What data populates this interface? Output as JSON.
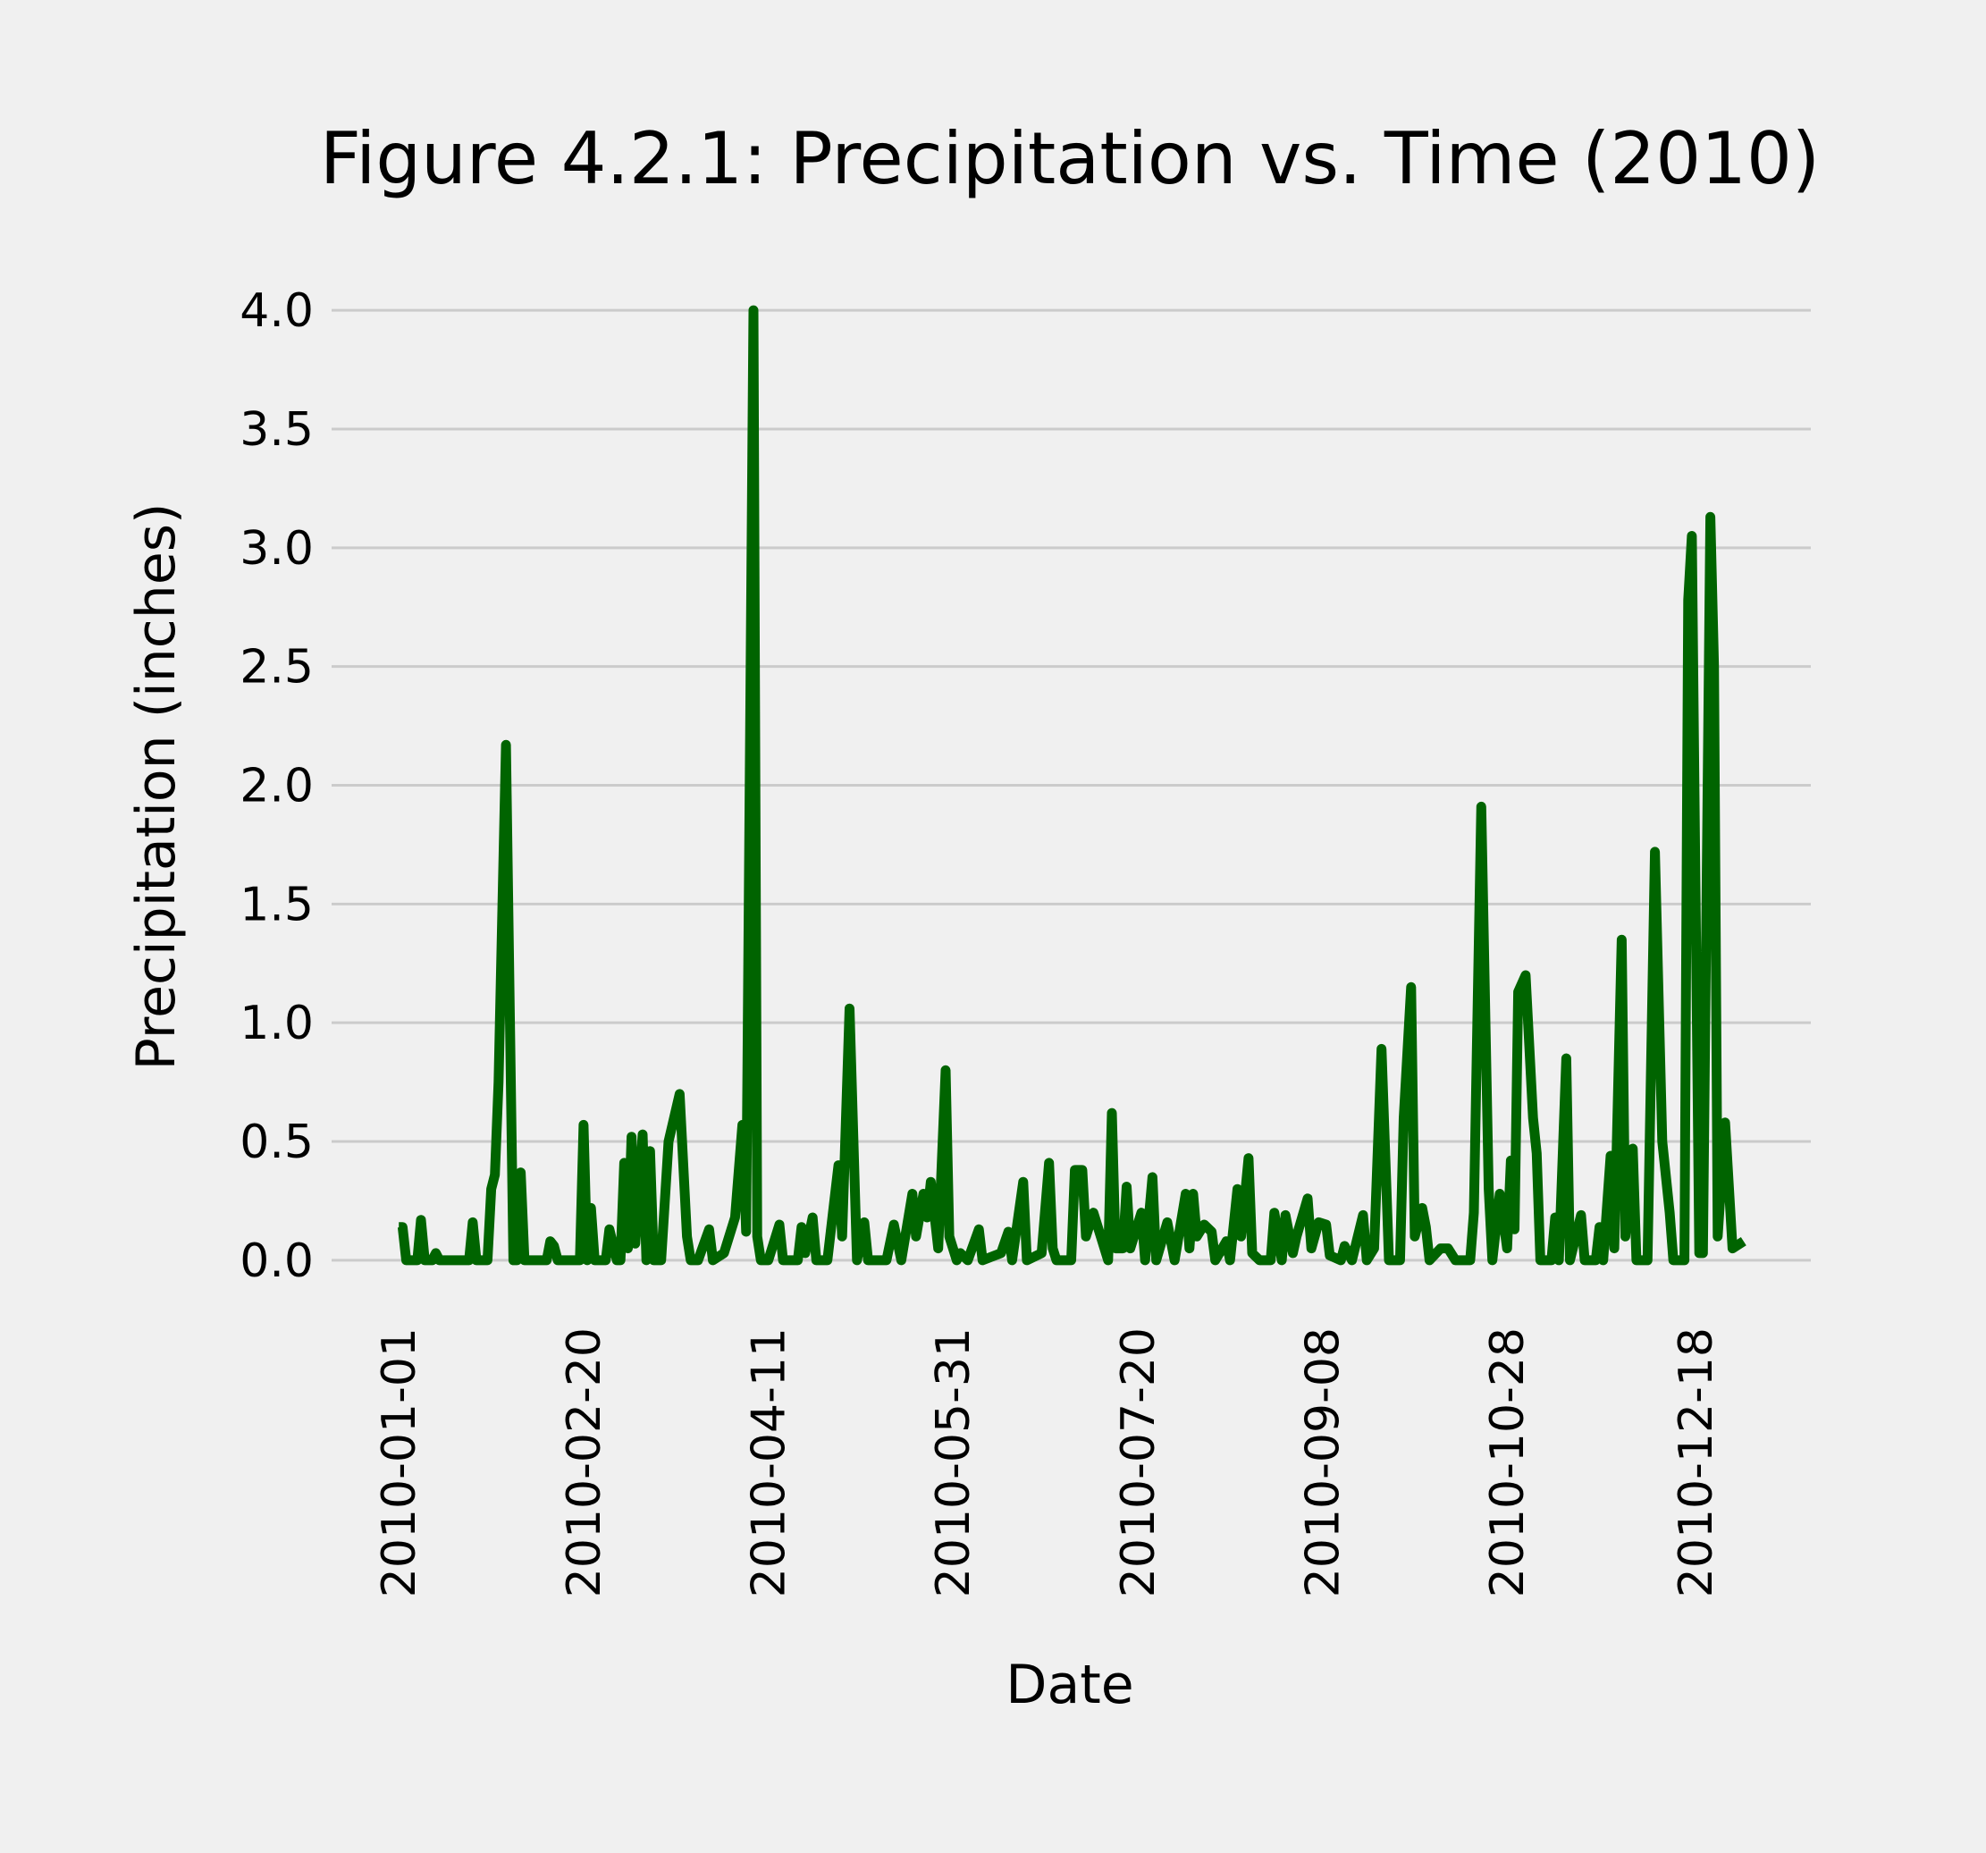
{
  "chart_data": {
    "type": "line",
    "title": "Figure 4.2.1: Precipitation vs. Time (2010)",
    "x_label": "Date",
    "y_label": "Precipitation (inches)",
    "color": "#006400",
    "grid": true,
    "x": [
      "2010-01-01",
      "2010-01-02",
      "2010-01-03",
      "2010-01-06",
      "2010-01-07",
      "2010-01-08",
      "2010-01-10",
      "2010-01-11",
      "2010-01-12",
      "2010-01-20",
      "2010-01-21",
      "2010-01-22",
      "2010-01-25",
      "2010-01-26",
      "2010-01-27",
      "2010-01-28",
      "2010-01-30",
      "2010-02-01",
      "2010-02-02",
      "2010-02-03",
      "2010-02-04",
      "2010-02-10",
      "2010-02-11",
      "2010-02-12",
      "2010-02-13",
      "2010-02-19",
      "2010-02-20",
      "2010-02-21",
      "2010-02-22",
      "2010-02-23",
      "2010-02-26",
      "2010-02-27",
      "2010-03-01",
      "2010-03-02",
      "2010-03-03",
      "2010-03-04",
      "2010-03-05",
      "2010-03-06",
      "2010-03-08",
      "2010-03-09",
      "2010-03-10",
      "2010-03-11",
      "2010-03-13",
      "2010-03-15",
      "2010-03-18",
      "2010-03-20",
      "2010-03-21",
      "2010-03-23",
      "2010-03-26",
      "2010-03-27",
      "2010-03-30",
      "2010-04-02",
      "2010-04-04",
      "2010-04-05",
      "2010-04-07",
      "2010-04-08",
      "2010-04-09",
      "2010-04-11",
      "2010-04-14",
      "2010-04-15",
      "2010-04-19",
      "2010-04-20",
      "2010-04-21",
      "2010-04-23",
      "2010-04-24",
      "2010-04-27",
      "2010-04-30",
      "2010-05-01",
      "2010-05-03",
      "2010-05-05",
      "2010-05-07",
      "2010-05-08",
      "2010-05-13",
      "2010-05-15",
      "2010-05-17",
      "2010-05-20",
      "2010-05-21",
      "2010-05-23",
      "2010-05-24",
      "2010-05-25",
      "2010-05-27",
      "2010-05-29",
      "2010-05-30",
      "2010-06-01",
      "2010-06-02",
      "2010-06-04",
      "2010-06-07",
      "2010-06-08",
      "2010-06-13",
      "2010-06-15",
      "2010-06-16",
      "2010-06-19",
      "2010-06-20",
      "2010-06-24",
      "2010-06-26",
      "2010-06-27",
      "2010-06-28",
      "2010-07-02",
      "2010-07-03",
      "2010-07-05",
      "2010-07-06",
      "2010-07-08",
      "2010-07-10",
      "2010-07-12",
      "2010-07-13",
      "2010-07-14",
      "2010-07-16",
      "2010-07-17",
      "2010-07-18",
      "2010-07-21",
      "2010-07-22",
      "2010-07-24",
      "2010-07-25",
      "2010-07-28",
      "2010-07-30",
      "2010-08-02",
      "2010-08-03",
      "2010-08-04",
      "2010-08-05",
      "2010-08-07",
      "2010-08-09",
      "2010-08-10",
      "2010-08-13",
      "2010-08-14",
      "2010-08-16",
      "2010-08-17",
      "2010-08-19",
      "2010-08-20",
      "2010-08-22",
      "2010-08-25",
      "2010-08-26",
      "2010-08-28",
      "2010-08-29",
      "2010-08-31",
      "2010-09-01",
      "2010-09-04",
      "2010-09-05",
      "2010-09-07",
      "2010-09-09",
      "2010-09-10",
      "2010-09-13",
      "2010-09-14",
      "2010-09-16",
      "2010-09-19",
      "2010-09-20",
      "2010-09-22",
      "2010-09-24",
      "2010-09-26",
      "2010-09-29",
      "2010-09-30",
      "2010-10-02",
      "2010-10-03",
      "2010-10-05",
      "2010-10-06",
      "2010-10-07",
      "2010-10-10",
      "2010-10-12",
      "2010-10-14",
      "2010-10-18",
      "2010-10-19",
      "2010-10-21",
      "2010-10-23",
      "2010-10-24",
      "2010-10-26",
      "2010-10-28",
      "2010-10-29",
      "2010-10-30",
      "2010-10-31",
      "2010-11-02",
      "2010-11-04",
      "2010-11-05",
      "2010-11-06",
      "2010-11-09",
      "2010-11-10",
      "2010-11-11",
      "2010-11-13",
      "2010-11-14",
      "2010-11-17",
      "2010-11-18",
      "2010-11-21",
      "2010-11-22",
      "2010-11-23",
      "2010-11-25",
      "2010-11-26",
      "2010-11-28",
      "2010-11-29",
      "2010-12-01",
      "2010-12-02",
      "2010-12-05",
      "2010-12-07",
      "2010-12-09",
      "2010-12-11",
      "2010-12-12",
      "2010-12-15",
      "2010-12-16",
      "2010-12-17",
      "2010-12-19",
      "2010-12-20",
      "2010-12-22",
      "2010-12-23",
      "2010-12-24",
      "2010-12-26",
      "2010-12-28",
      "2010-12-31"
    ],
    "values": [
      0.14,
      0.14,
      0,
      0,
      0.17,
      0,
      0,
      0.03,
      0,
      0,
      0.16,
      0,
      0,
      0.3,
      0.36,
      0.75,
      2.17,
      0,
      0,
      0.37,
      0,
      0,
      0.08,
      0.06,
      0,
      0,
      0.57,
      0,
      0.22,
      0,
      0,
      0.13,
      0,
      0,
      0.41,
      0.05,
      0.52,
      0.07,
      0.53,
      0,
      0.46,
      0,
      0,
      0.5,
      0.7,
      0.1,
      0,
      0,
      0.13,
      0,
      0.03,
      0.18,
      0.57,
      0.12,
      4.0,
      0.1,
      0,
      0,
      0.15,
      0,
      0,
      0.14,
      0.03,
      0.18,
      0,
      0,
      0.4,
      0.1,
      1.06,
      0,
      0.16,
      0,
      0,
      0.15,
      0,
      0.28,
      0.1,
      0.28,
      0.18,
      0.33,
      0.05,
      0.8,
      0.1,
      0,
      0.03,
      0,
      0.13,
      0,
      0.03,
      0.12,
      0,
      0.33,
      0,
      0.03,
      0.41,
      0.05,
      0,
      0,
      0.38,
      0.38,
      0.1,
      0.2,
      0.1,
      0,
      0.62,
      0.05,
      0.05,
      0.31,
      0.05,
      0.2,
      0,
      0.35,
      0,
      0.16,
      0,
      0.28,
      0.05,
      0.28,
      0.1,
      0.15,
      0.12,
      0,
      0.08,
      0,
      0.3,
      0.1,
      0.43,
      0.03,
      0,
      0,
      0.2,
      0,
      0.19,
      0.03,
      0.1,
      0.26,
      0.05,
      0.16,
      0.15,
      0.02,
      0,
      0.06,
      0,
      0.19,
      0,
      0.05,
      0.89,
      0,
      0,
      0.6,
      1.15,
      0.1,
      0.22,
      0.14,
      0,
      0.05,
      0.05,
      0,
      0,
      0.2,
      1.91,
      0.3,
      0,
      0.28,
      0.05,
      0.42,
      0.13,
      1.13,
      1.2,
      0.6,
      0.45,
      0,
      0,
      0.18,
      0,
      0.85,
      0,
      0.19,
      0,
      0,
      0.14,
      0,
      0.44,
      0.05,
      1.35,
      0.1,
      0.47,
      0,
      0,
      1.72,
      0.5,
      0.2,
      0,
      0,
      2.78,
      3.05,
      0.03,
      0.03,
      3.13,
      2.5,
      0.1,
      0.58,
      0.05,
      0.08
    ],
    "xlim": [
      "2010-01-01",
      "2010-12-31"
    ],
    "xticks": [
      "2010-01-01",
      "2010-02-20",
      "2010-04-11",
      "2010-05-31",
      "2010-07-20",
      "2010-09-08",
      "2010-10-28",
      "2010-12-18"
    ],
    "ylim": [
      -0.2,
      4.2
    ],
    "yticks": [
      {
        "value": 0,
        "label": "0.0"
      },
      0.5,
      {
        "value": 1,
        "label": "1.0"
      },
      1.5,
      {
        "value": 2,
        "label": "2.0"
      },
      2.5,
      {
        "value": 3,
        "label": "3.0"
      },
      3.5,
      {
        "value": 4,
        "label": "4.0"
      }
    ]
  }
}
